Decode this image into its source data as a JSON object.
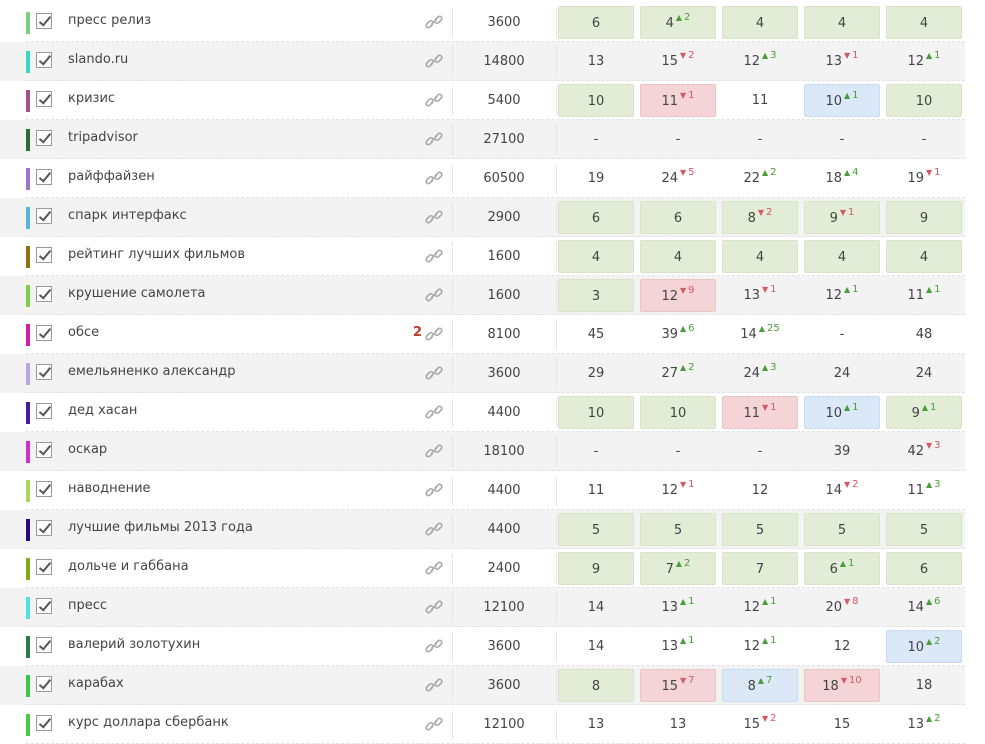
{
  "colors": {
    "good": "#e2ecd6",
    "bad": "#f4d4d6",
    "info": "#dbe8f8",
    "up": "#4a9e3a",
    "down": "#d35a66",
    "badge": "#c0392b"
  },
  "rows": [
    {
      "keyword": "пресс релиз",
      "color": "#7ed07e",
      "badge": "",
      "volume": "3600",
      "positions": [
        {
          "value": "6",
          "change": "",
          "dir": "",
          "hl": "g"
        },
        {
          "value": "4",
          "change": "2",
          "dir": "up",
          "hl": "g"
        },
        {
          "value": "4",
          "change": "",
          "dir": "",
          "hl": "g"
        },
        {
          "value": "4",
          "change": "",
          "dir": "",
          "hl": "g"
        },
        {
          "value": "4",
          "change": "",
          "dir": "",
          "hl": "g"
        }
      ]
    },
    {
      "keyword": "slando.ru",
      "color": "#3cd6c8",
      "badge": "",
      "volume": "14800",
      "positions": [
        {
          "value": "13",
          "change": "",
          "dir": "",
          "hl": ""
        },
        {
          "value": "15",
          "change": "2",
          "dir": "down",
          "hl": ""
        },
        {
          "value": "12",
          "change": "3",
          "dir": "up",
          "hl": ""
        },
        {
          "value": "13",
          "change": "1",
          "dir": "down",
          "hl": ""
        },
        {
          "value": "12",
          "change": "1",
          "dir": "up",
          "hl": ""
        }
      ]
    },
    {
      "keyword": "кризис",
      "color": "#a5508f",
      "badge": "",
      "volume": "5400",
      "positions": [
        {
          "value": "10",
          "change": "",
          "dir": "",
          "hl": "g"
        },
        {
          "value": "11",
          "change": "1",
          "dir": "down",
          "hl": "r"
        },
        {
          "value": "11",
          "change": "",
          "dir": "",
          "hl": ""
        },
        {
          "value": "10",
          "change": "1",
          "dir": "up",
          "hl": "b"
        },
        {
          "value": "10",
          "change": "",
          "dir": "",
          "hl": "g"
        }
      ]
    },
    {
      "keyword": "tripadvisor",
      "color": "#2e6b34",
      "badge": "",
      "volume": "27100",
      "positions": [
        {
          "value": "-",
          "change": "",
          "dir": "",
          "hl": ""
        },
        {
          "value": "-",
          "change": "",
          "dir": "",
          "hl": ""
        },
        {
          "value": "-",
          "change": "",
          "dir": "",
          "hl": ""
        },
        {
          "value": "-",
          "change": "",
          "dir": "",
          "hl": ""
        },
        {
          "value": "-",
          "change": "",
          "dir": "",
          "hl": ""
        }
      ]
    },
    {
      "keyword": "райффайзен",
      "color": "#a074c0",
      "badge": "",
      "volume": "60500",
      "positions": [
        {
          "value": "19",
          "change": "",
          "dir": "",
          "hl": ""
        },
        {
          "value": "24",
          "change": "5",
          "dir": "down",
          "hl": ""
        },
        {
          "value": "22",
          "change": "2",
          "dir": "up",
          "hl": ""
        },
        {
          "value": "18",
          "change": "4",
          "dir": "up",
          "hl": ""
        },
        {
          "value": "19",
          "change": "1",
          "dir": "down",
          "hl": ""
        }
      ]
    },
    {
      "keyword": "спарк интерфакс",
      "color": "#58b4d8",
      "badge": "",
      "volume": "2900",
      "positions": [
        {
          "value": "6",
          "change": "",
          "dir": "",
          "hl": "g"
        },
        {
          "value": "6",
          "change": "",
          "dir": "",
          "hl": "g"
        },
        {
          "value": "8",
          "change": "2",
          "dir": "down",
          "hl": "g"
        },
        {
          "value": "9",
          "change": "1",
          "dir": "down",
          "hl": "g"
        },
        {
          "value": "9",
          "change": "",
          "dir": "",
          "hl": "g"
        }
      ]
    },
    {
      "keyword": "рейтинг лучших фильмов",
      "color": "#8a7210",
      "badge": "",
      "volume": "1600",
      "positions": [
        {
          "value": "4",
          "change": "",
          "dir": "",
          "hl": "g"
        },
        {
          "value": "4",
          "change": "",
          "dir": "",
          "hl": "g"
        },
        {
          "value": "4",
          "change": "",
          "dir": "",
          "hl": "g"
        },
        {
          "value": "4",
          "change": "",
          "dir": "",
          "hl": "g"
        },
        {
          "value": "4",
          "change": "",
          "dir": "",
          "hl": "g"
        }
      ]
    },
    {
      "keyword": "крушение самолета",
      "color": "#7ecf4a",
      "badge": "",
      "volume": "1600",
      "positions": [
        {
          "value": "3",
          "change": "",
          "dir": "",
          "hl": "g"
        },
        {
          "value": "12",
          "change": "9",
          "dir": "down",
          "hl": "r"
        },
        {
          "value": "13",
          "change": "1",
          "dir": "down",
          "hl": ""
        },
        {
          "value": "12",
          "change": "1",
          "dir": "up",
          "hl": ""
        },
        {
          "value": "11",
          "change": "1",
          "dir": "up",
          "hl": ""
        }
      ]
    },
    {
      "keyword": "обсе",
      "color": "#d21ea8",
      "badge": "2",
      "volume": "8100",
      "positions": [
        {
          "value": "45",
          "change": "",
          "dir": "",
          "hl": ""
        },
        {
          "value": "39",
          "change": "6",
          "dir": "up",
          "hl": ""
        },
        {
          "value": "14",
          "change": "25",
          "dir": "up",
          "hl": ""
        },
        {
          "value": "-",
          "change": "",
          "dir": "",
          "hl": ""
        },
        {
          "value": "48",
          "change": "",
          "dir": "",
          "hl": ""
        }
      ]
    },
    {
      "keyword": "емельяненко александр",
      "color": "#b8a6e6",
      "badge": "",
      "volume": "3600",
      "positions": [
        {
          "value": "29",
          "change": "",
          "dir": "",
          "hl": ""
        },
        {
          "value": "27",
          "change": "2",
          "dir": "up",
          "hl": ""
        },
        {
          "value": "24",
          "change": "3",
          "dir": "up",
          "hl": ""
        },
        {
          "value": "24",
          "change": "",
          "dir": "",
          "hl": ""
        },
        {
          "value": "24",
          "change": "",
          "dir": "",
          "hl": ""
        }
      ]
    },
    {
      "keyword": "дед хасан",
      "color": "#4a1aa0",
      "badge": "",
      "volume": "4400",
      "positions": [
        {
          "value": "10",
          "change": "",
          "dir": "",
          "hl": "g"
        },
        {
          "value": "10",
          "change": "",
          "dir": "",
          "hl": "g"
        },
        {
          "value": "11",
          "change": "1",
          "dir": "down",
          "hl": "r"
        },
        {
          "value": "10",
          "change": "1",
          "dir": "up",
          "hl": "b"
        },
        {
          "value": "9",
          "change": "1",
          "dir": "up",
          "hl": "g"
        }
      ]
    },
    {
      "keyword": "оскар",
      "color": "#d22ed2",
      "badge": "",
      "volume": "18100",
      "positions": [
        {
          "value": "-",
          "change": "",
          "dir": "",
          "hl": ""
        },
        {
          "value": "-",
          "change": "",
          "dir": "",
          "hl": ""
        },
        {
          "value": "-",
          "change": "",
          "dir": "",
          "hl": ""
        },
        {
          "value": "39",
          "change": "",
          "dir": "",
          "hl": ""
        },
        {
          "value": "42",
          "change": "3",
          "dir": "down",
          "hl": ""
        }
      ]
    },
    {
      "keyword": "наводнение",
      "color": "#a6d85a",
      "badge": "",
      "volume": "4400",
      "positions": [
        {
          "value": "11",
          "change": "",
          "dir": "",
          "hl": ""
        },
        {
          "value": "12",
          "change": "1",
          "dir": "down",
          "hl": ""
        },
        {
          "value": "12",
          "change": "",
          "dir": "",
          "hl": ""
        },
        {
          "value": "14",
          "change": "2",
          "dir": "down",
          "hl": ""
        },
        {
          "value": "11",
          "change": "3",
          "dir": "up",
          "hl": ""
        }
      ]
    },
    {
      "keyword": "лучшие фильмы 2013 года",
      "color": "#2a0a7a",
      "badge": "",
      "volume": "4400",
      "positions": [
        {
          "value": "5",
          "change": "",
          "dir": "",
          "hl": "g"
        },
        {
          "value": "5",
          "change": "",
          "dir": "",
          "hl": "g"
        },
        {
          "value": "5",
          "change": "",
          "dir": "",
          "hl": "g"
        },
        {
          "value": "5",
          "change": "",
          "dir": "",
          "hl": "g"
        },
        {
          "value": "5",
          "change": "",
          "dir": "",
          "hl": "g"
        }
      ]
    },
    {
      "keyword": "дольче и габбана",
      "color": "#84a81c",
      "badge": "",
      "volume": "2400",
      "positions": [
        {
          "value": "9",
          "change": "",
          "dir": "",
          "hl": "g"
        },
        {
          "value": "7",
          "change": "2",
          "dir": "up",
          "hl": "g"
        },
        {
          "value": "7",
          "change": "",
          "dir": "",
          "hl": "g"
        },
        {
          "value": "6",
          "change": "1",
          "dir": "up",
          "hl": "g"
        },
        {
          "value": "6",
          "change": "",
          "dir": "",
          "hl": "g"
        }
      ]
    },
    {
      "keyword": "пресс",
      "color": "#52e0e0",
      "badge": "",
      "volume": "12100",
      "positions": [
        {
          "value": "14",
          "change": "",
          "dir": "",
          "hl": ""
        },
        {
          "value": "13",
          "change": "1",
          "dir": "up",
          "hl": ""
        },
        {
          "value": "12",
          "change": "1",
          "dir": "up",
          "hl": ""
        },
        {
          "value": "20",
          "change": "8",
          "dir": "down",
          "hl": ""
        },
        {
          "value": "14",
          "change": "6",
          "dir": "up",
          "hl": ""
        }
      ]
    },
    {
      "keyword": "валерий золотухин",
      "color": "#2a7a46",
      "badge": "",
      "volume": "3600",
      "positions": [
        {
          "value": "14",
          "change": "",
          "dir": "",
          "hl": ""
        },
        {
          "value": "13",
          "change": "1",
          "dir": "up",
          "hl": ""
        },
        {
          "value": "12",
          "change": "1",
          "dir": "up",
          "hl": ""
        },
        {
          "value": "12",
          "change": "",
          "dir": "",
          "hl": ""
        },
        {
          "value": "10",
          "change": "2",
          "dir": "up",
          "hl": "b"
        }
      ]
    },
    {
      "keyword": "карабах",
      "color": "#3ac84a",
      "badge": "",
      "volume": "3600",
      "positions": [
        {
          "value": "8",
          "change": "",
          "dir": "",
          "hl": "g"
        },
        {
          "value": "15",
          "change": "7",
          "dir": "down",
          "hl": "r"
        },
        {
          "value": "8",
          "change": "7",
          "dir": "up",
          "hl": "b"
        },
        {
          "value": "18",
          "change": "10",
          "dir": "down",
          "hl": "r"
        },
        {
          "value": "18",
          "change": "",
          "dir": "",
          "hl": ""
        }
      ]
    },
    {
      "keyword": "курс доллара сбербанк",
      "color": "#4ac84a",
      "badge": "",
      "volume": "12100",
      "positions": [
        {
          "value": "13",
          "change": "",
          "dir": "",
          "hl": ""
        },
        {
          "value": "13",
          "change": "",
          "dir": "",
          "hl": ""
        },
        {
          "value": "15",
          "change": "2",
          "dir": "down",
          "hl": ""
        },
        {
          "value": "15",
          "change": "",
          "dir": "",
          "hl": ""
        },
        {
          "value": "13",
          "change": "2",
          "dir": "up",
          "hl": ""
        }
      ]
    }
  ]
}
